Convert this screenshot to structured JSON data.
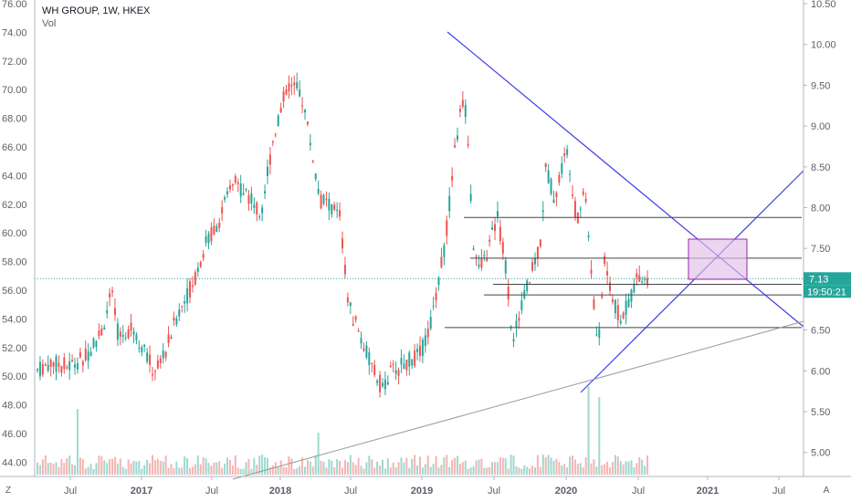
{
  "header": {
    "title": "WH GROUP, 1W, HKEX",
    "volume_label": "Vol"
  },
  "controls": {
    "left_button": "Z",
    "right_button": "A"
  },
  "price_badge": {
    "value": "7.13",
    "countdown": "19:50:21"
  },
  "colors": {
    "up": "#26a69a",
    "down": "#ef5350",
    "trend": "#3d3de8",
    "hline": "#444444",
    "zone_fill": "#e1bee7",
    "zone_stroke": "#9c27b0",
    "badge": "#26a69a",
    "dotted": "#26a69a"
  },
  "chart_data": {
    "type": "candlestick",
    "title": "WH GROUP, 1W, HKEX",
    "left_axis": {
      "ticks": [
        "76.00",
        "74.00",
        "72.00",
        "70.00",
        "68.00",
        "66.00",
        "64.00",
        "62.00",
        "60.00",
        "58.00",
        "56.00",
        "54.00",
        "52.00",
        "50.00",
        "48.00",
        "46.00",
        "44.00"
      ]
    },
    "right_axis": {
      "ticks": [
        "10.50",
        "10.00",
        "9.50",
        "9.00",
        "8.50",
        "8.00",
        "7.50",
        "7.00",
        "6.50",
        "6.00",
        "5.50",
        "5.00"
      ],
      "ylim": [
        4.7,
        10.55
      ]
    },
    "x_axis": {
      "ticks": [
        "Jul",
        "2017",
        "Jul",
        "2018",
        "Jul",
        "2019",
        "Jul",
        "2020",
        "Jul",
        "2021",
        "Jul"
      ],
      "xlim": [
        "2016-02",
        "2021-10"
      ]
    },
    "ohlc_weekly_approx": [
      {
        "date": "2016-03",
        "price": 6.1
      },
      {
        "date": "2016-06",
        "price": 6.2
      },
      {
        "date": "2016-09",
        "price": 6.3
      },
      {
        "date": "2016-10",
        "price": 6.95
      },
      {
        "date": "2016-12",
        "price": 6.35
      },
      {
        "date": "2017-02",
        "price": 6.2
      },
      {
        "date": "2017-05",
        "price": 7.0
      },
      {
        "date": "2017-08",
        "price": 7.8
      },
      {
        "date": "2017-10",
        "price": 8.3
      },
      {
        "date": "2017-12",
        "price": 8.95
      },
      {
        "date": "2018-01",
        "price": 9.55
      },
      {
        "date": "2018-03",
        "price": 8.5
      },
      {
        "date": "2018-05",
        "price": 8.0
      },
      {
        "date": "2018-06",
        "price": 6.85
      },
      {
        "date": "2018-08",
        "price": 6.2
      },
      {
        "date": "2018-10",
        "price": 5.75
      },
      {
        "date": "2018-12",
        "price": 6.0
      },
      {
        "date": "2019-02",
        "price": 7.0
      },
      {
        "date": "2019-04",
        "price": 8.5
      },
      {
        "date": "2019-05",
        "price": 9.7
      },
      {
        "date": "2019-06",
        "price": 8.6
      },
      {
        "date": "2019-08",
        "price": 7.2
      },
      {
        "date": "2019-10",
        "price": 6.7
      },
      {
        "date": "2019-12",
        "price": 8.5
      },
      {
        "date": "2020-01",
        "price": 8.65
      },
      {
        "date": "2020-03",
        "price": 6.3
      },
      {
        "date": "2020-04",
        "price": 7.35
      },
      {
        "date": "2020-06",
        "price": 6.7
      },
      {
        "date": "2020-07",
        "price": 7.13
      }
    ],
    "last_price": 7.13,
    "volume_bars": "present"
  }
}
